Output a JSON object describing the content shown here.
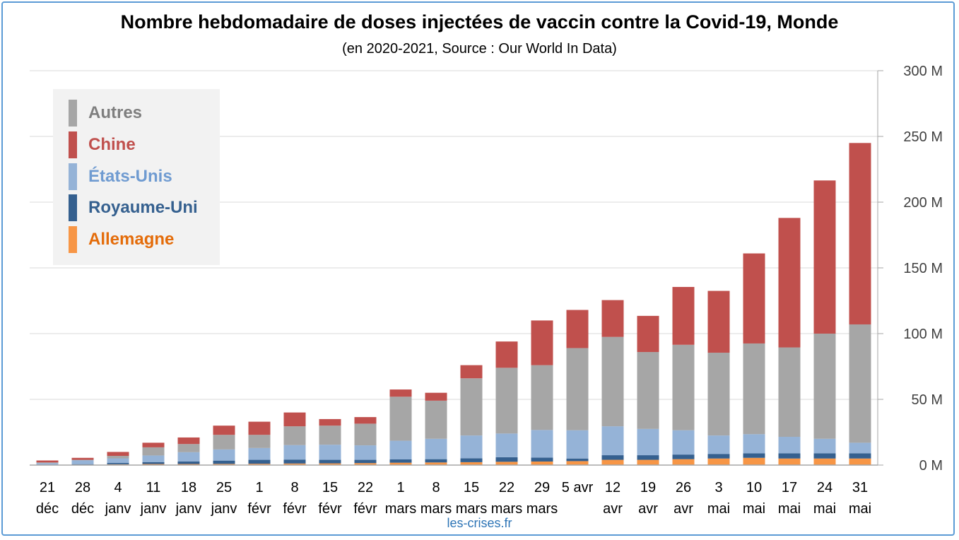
{
  "title": "Nombre hebdomadaire de doses injectées de vaccin contre la Covid-19, Monde",
  "subtitle": "(en 2020-2021, Source : Our World In Data)",
  "source": "les-crises.fr",
  "chart_data": {
    "type": "bar",
    "stacked": true,
    "ylim": [
      0,
      300
    ],
    "y_unit": "M",
    "y_ticks": [
      "0 M",
      "50 M",
      "100 M",
      "150 M",
      "200 M",
      "250 M",
      "300 M"
    ],
    "grid": true,
    "legend_position": "top-left",
    "categories": [
      [
        "21",
        "déc"
      ],
      [
        "28",
        "déc"
      ],
      [
        "4",
        "janv"
      ],
      [
        "11",
        "janv"
      ],
      [
        "18",
        "janv"
      ],
      [
        "25",
        "janv"
      ],
      [
        "1",
        "févr"
      ],
      [
        "8",
        "févr"
      ],
      [
        "15",
        "févr"
      ],
      [
        "22",
        "févr"
      ],
      [
        "1",
        "mars"
      ],
      [
        "8",
        "mars"
      ],
      [
        "15",
        "mars"
      ],
      [
        "22",
        "mars"
      ],
      [
        "29",
        "mars"
      ],
      [
        "5 avr",
        ""
      ],
      [
        "12",
        "avr"
      ],
      [
        "19",
        "avr"
      ],
      [
        "26",
        "avr"
      ],
      [
        "3",
        "mai"
      ],
      [
        "10",
        "mai"
      ],
      [
        "17",
        "mai"
      ],
      [
        "24",
        "mai"
      ],
      [
        "31",
        "mai"
      ]
    ],
    "series": [
      {
        "name": "Allemagne",
        "color": "#f79646",
        "values": [
          0.1,
          0.3,
          0.6,
          0.8,
          0.8,
          0.9,
          1.0,
          1.2,
          1.3,
          1.5,
          1.8,
          2.0,
          2.2,
          2.5,
          2.7,
          3.0,
          4.0,
          4.0,
          4.5,
          5.0,
          5.5,
          5.0,
          5.0,
          5.0
        ]
      },
      {
        "name": "Royaume-Uni",
        "color": "#35608f",
        "values": [
          0.2,
          0.4,
          1.0,
          1.5,
          2.0,
          2.5,
          3.0,
          3.0,
          2.7,
          2.5,
          2.5,
          2.5,
          3.0,
          3.5,
          3.0,
          2.0,
          3.5,
          3.5,
          3.5,
          3.5,
          3.5,
          4.0,
          4.0,
          4.0
        ]
      },
      {
        "name": "États-Unis",
        "color": "#95b3d7",
        "values": [
          1.2,
          3.0,
          3.5,
          5.0,
          7.0,
          8.5,
          9.0,
          11.0,
          11.5,
          11.0,
          14.2,
          15.5,
          17.3,
          18.0,
          21.0,
          21.5,
          22.0,
          20.0,
          18.5,
          14.0,
          14.5,
          12.5,
          11.0,
          8.0
        ]
      },
      {
        "name": "Autres",
        "color": "#a6a6a6",
        "values": [
          0.5,
          0.3,
          1.9,
          6.2,
          6.2,
          11.1,
          10.0,
          14.3,
          14.5,
          16.5,
          33.5,
          29.0,
          43.5,
          50.0,
          49.3,
          62.5,
          68.0,
          58.5,
          65.0,
          63.0,
          69.0,
          68.0,
          80.0,
          90.0
        ]
      },
      {
        "name": "Chine",
        "color": "#c0504d",
        "values": [
          1.5,
          1.5,
          3.0,
          3.5,
          5.0,
          7.0,
          10.0,
          10.5,
          5.0,
          5.0,
          5.5,
          6.0,
          10.0,
          20.0,
          34.0,
          29.0,
          28.0,
          27.5,
          44.0,
          47.0,
          68.5,
          98.5,
          116.5,
          138.0
        ]
      }
    ]
  },
  "legend": {
    "items": [
      {
        "label": "Autres",
        "color": "#a6a6a6",
        "text_color": "#7f7f7f"
      },
      {
        "label": "Chine",
        "color": "#c0504d",
        "text_color": "#c0504d"
      },
      {
        "label": "États-Unis",
        "color": "#95b3d7",
        "text_color": "#6f9bd1"
      },
      {
        "label": "Royaume-Uni",
        "color": "#35608f",
        "text_color": "#35608f"
      },
      {
        "label": "Allemagne",
        "color": "#f79646",
        "text_color": "#e46c0a"
      }
    ]
  }
}
